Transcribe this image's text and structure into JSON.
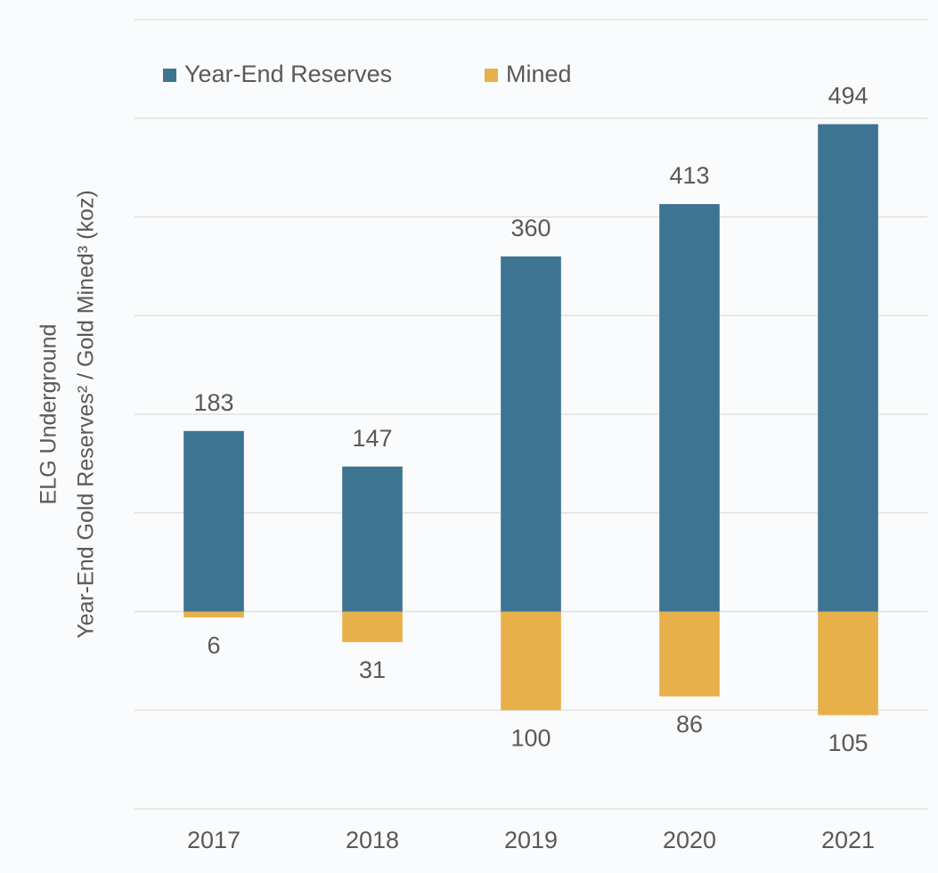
{
  "chart_data": {
    "type": "bar",
    "y_axis_label": [
      "ELG Underground",
      "Year-End Gold Reserves² / Gold Mined³ (koz)"
    ],
    "categories": [
      "2017",
      "2018",
      "2019",
      "2020",
      "2021"
    ],
    "series": [
      {
        "name": "Year-End Reserves",
        "color": "#3d7491",
        "values": [
          183,
          147,
          360,
          413,
          494
        ]
      },
      {
        "name": "Mined",
        "color": "#e8b04a",
        "values": [
          -6,
          -31,
          -100,
          -86,
          -105
        ],
        "value_labels": [
          "6",
          "31",
          "100",
          "86",
          "105"
        ]
      }
    ],
    "ylim": [
      -200,
      600
    ],
    "yticks": [
      -200,
      -100,
      0,
      100,
      200,
      300,
      400,
      500,
      600
    ],
    "grid": true
  }
}
